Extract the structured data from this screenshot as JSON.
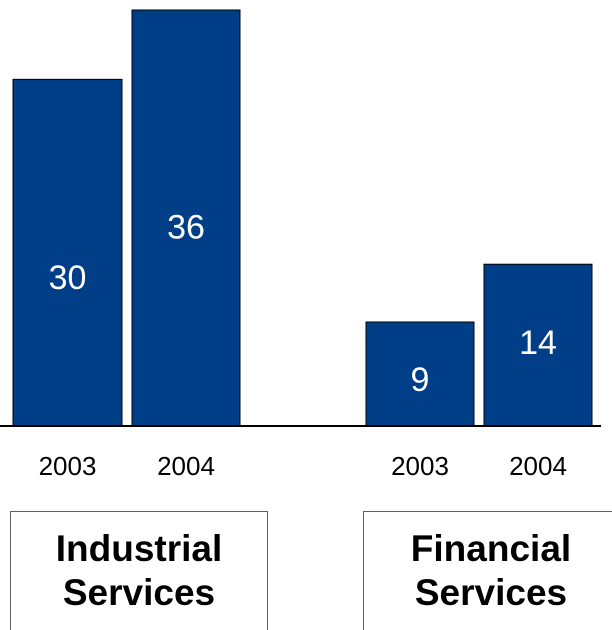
{
  "chart_data": {
    "type": "bar",
    "bar_color": "#003f87",
    "groups": [
      {
        "name": "Industrial\nServices",
        "bars": [
          {
            "category": "2003",
            "value": 30
          },
          {
            "category": "2004",
            "value": 36
          }
        ]
      },
      {
        "name": "Financial\nServices",
        "bars": [
          {
            "category": "2003",
            "value": 9
          },
          {
            "category": "2004",
            "value": 14
          }
        ]
      }
    ],
    "ylim": [
      0,
      36
    ]
  }
}
